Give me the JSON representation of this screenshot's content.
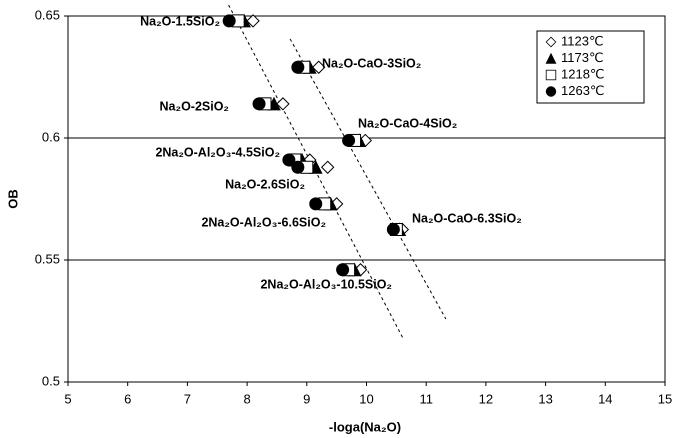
{
  "chart_data": {
    "type": "scatter",
    "xlabel": "-loga(Na₂O)",
    "ylabel": "OB",
    "xlim": [
      5,
      15
    ],
    "xticks": [
      5,
      6,
      7,
      8,
      9,
      10,
      11,
      12,
      13,
      14,
      15
    ],
    "ylim": [
      0.5,
      0.65
    ],
    "yticks": [
      0.5,
      0.55,
      0.6,
      0.65
    ],
    "grid": true,
    "legend": "upper right",
    "annotations": [
      "Na₂O-1.5SiO₂",
      "Na₂O-CaO-3SiO₂",
      "Na₂O-2SiO₂",
      "Na₂O-CaO-4SiO₂",
      "2Na₂O-Al₂O₃-4.5SiO₂",
      "Na₂O-2.6SiO₂",
      "2Na₂O-Al₂O₃-6.6SiO₂",
      "Na₂O-CaO-6.3SiO₂",
      "2Na₂O-Al₂O₃-10.5SiO₂"
    ],
    "series": [
      {
        "name": "1123℃",
        "marker": "diamond",
        "color": "#000000",
        "x": [
          8.1,
          9.2,
          8.6,
          9.98,
          9.05,
          9.35,
          9.5,
          10.6,
          9.9
        ],
        "y": [
          0.648,
          0.629,
          0.614,
          0.599,
          0.591,
          0.588,
          0.573,
          0.5625,
          0.546
        ]
      },
      {
        "name": "1173℃",
        "marker": "triangle",
        "color": "#000000",
        "x": [
          7.95,
          9.05,
          8.45,
          9.88,
          8.92,
          9.15,
          9.4,
          10.55,
          9.8
        ],
        "y": [
          0.648,
          0.629,
          0.614,
          0.599,
          0.591,
          0.588,
          0.573,
          0.5625,
          0.546
        ]
      },
      {
        "name": "1218℃",
        "marker": "square",
        "color": "#000000",
        "x": [
          7.85,
          8.95,
          8.3,
          9.8,
          8.8,
          9.0,
          9.3,
          10.5,
          9.7
        ],
        "y": [
          0.648,
          0.629,
          0.614,
          0.599,
          0.591,
          0.588,
          0.573,
          0.5625,
          0.546
        ]
      },
      {
        "name": "1263℃",
        "marker": "circle",
        "color": "#000000",
        "x": [
          7.7,
          8.85,
          8.2,
          9.7,
          8.7,
          8.85,
          9.15,
          10.45,
          9.6
        ],
        "y": [
          0.648,
          0.629,
          0.614,
          0.599,
          0.591,
          0.588,
          0.573,
          0.5625,
          0.546
        ]
      }
    ],
    "trend_lines": [
      {
        "x": [
          7.69,
          10.61
        ],
        "y": [
          0.6545,
          0.518
        ]
      },
      {
        "x": [
          8.72,
          11.33
        ],
        "y": [
          0.6406,
          0.5258
        ]
      }
    ]
  }
}
